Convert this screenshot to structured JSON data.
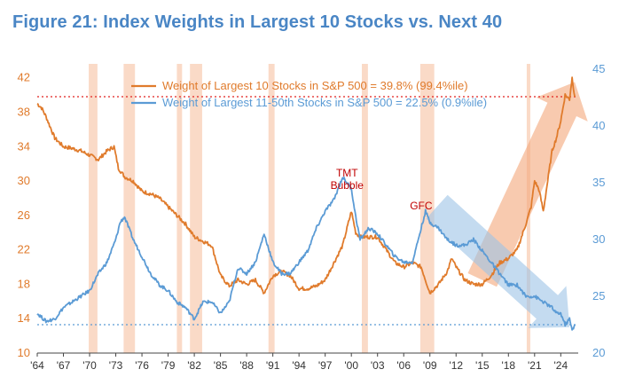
{
  "title": "Figure 21: Index Weights in Largest 10 Stocks vs. Next 40",
  "colors": {
    "title": "#4a86c5",
    "top10": "#e07b2c",
    "next40": "#5b9bd5",
    "recession": "#f9d3bd",
    "ref_top10": "#e0201f",
    "ref_next40": "#5b9bd5",
    "annotation": "#c00000",
    "arrow_up": "#f3a77a",
    "arrow_down": "#9cc3e6"
  },
  "chart_data": {
    "type": "line",
    "title": "Figure 21: Index Weights in Largest 10 Stocks vs. Next 40",
    "legend_position": "top-center",
    "grid": false,
    "x_tick_labels": [
      "'64",
      "'67",
      "'70",
      "'73",
      "'76",
      "'79",
      "'82",
      "'85",
      "'88",
      "'91",
      "'94",
      "'97",
      "'00",
      "'03",
      "'06",
      "'09",
      "'12",
      "'15",
      "'18",
      "'21",
      "'24"
    ],
    "x_range": [
      1964,
      2026
    ],
    "y_left": {
      "range": [
        10,
        43
      ],
      "ticks": [
        10,
        14,
        18,
        22,
        26,
        30,
        34,
        38,
        42
      ]
    },
    "y_right": {
      "range": [
        20,
        45
      ],
      "ticks": [
        20,
        25,
        30,
        35,
        40,
        45
      ]
    },
    "recession_periods": [
      [
        1969.9,
        1970.9
      ],
      [
        1973.9,
        1975.2
      ],
      [
        1980.0,
        1980.6
      ],
      [
        1981.5,
        1982.9
      ],
      [
        1990.5,
        1991.2
      ],
      [
        2001.2,
        2001.9
      ],
      [
        2007.9,
        2009.5
      ],
      [
        2020.1,
        2020.4
      ]
    ],
    "series": [
      {
        "name": "Weight of Largest 10 Stocks in S&P 500 = 39.8% (99.4%ile)",
        "axis": "left",
        "color": "#e07b2c",
        "x": [
          1964.0,
          1964.5,
          1965.0,
          1966.0,
          1967.0,
          1968.0,
          1969.0,
          1970.0,
          1971.0,
          1972.0,
          1972.8,
          1973.3,
          1974.0,
          1975.0,
          1976.0,
          1977.0,
          1978.0,
          1979.0,
          1980.0,
          1981.0,
          1982.0,
          1983.0,
          1984.0,
          1985.0,
          1986.0,
          1987.0,
          1988.0,
          1989.0,
          1990.0,
          1991.0,
          1992.0,
          1993.0,
          1994.0,
          1995.0,
          1996.0,
          1997.0,
          1998.0,
          1999.0,
          2000.0,
          2000.5,
          2001.0,
          2002.0,
          2003.0,
          2004.0,
          2005.0,
          2006.0,
          2007.0,
          2008.0,
          2009.0,
          2010.0,
          2011.0,
          2011.5,
          2012.0,
          2013.0,
          2014.0,
          2015.0,
          2016.0,
          2017.0,
          2018.0,
          2019.0,
          2020.0,
          2020.6,
          2021.0,
          2021.5,
          2022.0,
          2022.5,
          2023.0,
          2023.5,
          2024.0,
          2024.5,
          2025.0,
          2025.3,
          2025.6
        ],
        "y": [
          39.0,
          38.5,
          37.5,
          35.0,
          34.0,
          33.8,
          33.5,
          33.0,
          32.5,
          33.5,
          34.0,
          31.5,
          30.5,
          30.0,
          28.8,
          28.5,
          28.0,
          27.0,
          26.0,
          25.0,
          23.5,
          23.0,
          22.5,
          19.0,
          17.8,
          18.5,
          18.0,
          18.5,
          17.0,
          19.0,
          19.5,
          19.0,
          17.5,
          17.5,
          17.8,
          18.5,
          20.5,
          22.5,
          26.5,
          24.0,
          23.5,
          23.5,
          23.5,
          22.0,
          20.5,
          20.0,
          20.5,
          20.0,
          17.0,
          18.0,
          19.5,
          21.0,
          20.0,
          18.5,
          18.0,
          18.0,
          19.0,
          20.5,
          21.0,
          22.0,
          25.0,
          27.0,
          30.0,
          29.0,
          26.5,
          30.0,
          33.5,
          35.0,
          37.0,
          40.0,
          39.5,
          42.0,
          39.8
        ]
      },
      {
        "name": "Weight of Largest 11-50th Stocks in S&P 500 = 22.5% (0.9%ile)",
        "axis": "right",
        "color": "#5b9bd5",
        "x": [
          1964.0,
          1965.0,
          1966.0,
          1967.0,
          1968.0,
          1969.0,
          1970.0,
          1971.0,
          1972.0,
          1973.0,
          1973.5,
          1974.0,
          1975.0,
          1976.0,
          1977.0,
          1978.0,
          1979.0,
          1980.0,
          1981.0,
          1982.0,
          1983.0,
          1984.0,
          1985.0,
          1986.0,
          1987.0,
          1988.0,
          1989.0,
          1990.0,
          1991.0,
          1992.0,
          1993.0,
          1994.0,
          1995.0,
          1996.0,
          1997.0,
          1998.0,
          1999.0,
          1999.5,
          2000.0,
          2000.5,
          2001.0,
          2002.0,
          2003.0,
          2004.0,
          2005.0,
          2006.0,
          2007.0,
          2008.0,
          2008.5,
          2009.0,
          2010.0,
          2011.0,
          2012.0,
          2013.0,
          2014.0,
          2015.0,
          2016.0,
          2017.0,
          2018.0,
          2019.0,
          2020.0,
          2021.0,
          2022.0,
          2023.0,
          2023.5,
          2024.0,
          2024.5,
          2025.0,
          2025.3,
          2025.6
        ],
        "y": [
          23.5,
          22.8,
          23.0,
          24.0,
          24.5,
          25.0,
          25.5,
          27.0,
          28.0,
          30.0,
          31.5,
          32.0,
          30.0,
          28.5,
          27.0,
          26.0,
          25.5,
          24.5,
          24.0,
          23.0,
          24.5,
          24.5,
          23.5,
          24.5,
          27.5,
          27.0,
          28.0,
          30.5,
          28.0,
          27.0,
          27.0,
          28.0,
          29.0,
          31.0,
          32.5,
          33.5,
          35.5,
          35.0,
          34.5,
          32.0,
          30.0,
          31.0,
          30.5,
          29.5,
          28.5,
          28.0,
          28.0,
          31.0,
          32.5,
          31.5,
          31.0,
          30.0,
          29.5,
          29.5,
          30.0,
          29.0,
          28.0,
          27.0,
          26.0,
          26.0,
          25.0,
          25.0,
          24.5,
          24.0,
          23.5,
          23.5,
          22.5,
          23.0,
          22.0,
          22.5
        ]
      }
    ],
    "reference_lines": [
      {
        "axis": "left",
        "value": 39.8,
        "style": "dotted",
        "color": "#e0201f"
      },
      {
        "axis": "right",
        "value": 22.5,
        "style": "dotted",
        "color": "#5b9bd5"
      }
    ],
    "annotations": [
      {
        "text_lines": [
          "TMT",
          "Bubble"
        ],
        "x": 1999.5,
        "y_left": 30.5
      },
      {
        "text_lines": [
          "GFC"
        ],
        "x": 2008.0,
        "y_left": 26.7
      }
    ],
    "arrows": [
      {
        "direction": "up",
        "color": "#f3a77a",
        "from": [
          2015.0,
          18.5
        ],
        "to": [
          2025.6,
          41.5
        ]
      },
      {
        "direction": "down",
        "color": "#9cc3e6",
        "from": [
          2009.8,
          27.0
        ],
        "to": [
          2025.0,
          13.0
        ]
      }
    ]
  }
}
